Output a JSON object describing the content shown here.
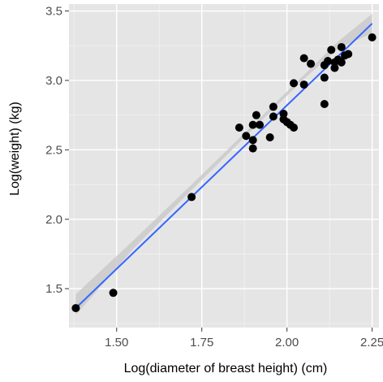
{
  "chart_data": {
    "type": "scatter",
    "title": "",
    "xlabel": "Log(diameter of breast height) (cm)",
    "ylabel": "Log(weight) (kg)",
    "xlim": [
      1.36,
      2.27
    ],
    "ylim": [
      1.22,
      3.55
    ],
    "x_ticks": [
      1.5,
      1.75,
      2.0,
      2.25
    ],
    "x_tick_labels": [
      "1.50",
      "1.75",
      "2.00",
      "2.25"
    ],
    "y_ticks": [
      1.5,
      2.0,
      2.5,
      3.0,
      3.5
    ],
    "y_tick_labels": [
      "1.5",
      "2.0",
      "2.5",
      "3.0",
      "3.5"
    ],
    "grid": true,
    "legend": "none",
    "colors": {
      "panel": "#e5e5e5",
      "grid_major": "#ffffff",
      "grid_minor": "#f2f2f2",
      "points": "#000000",
      "fit_line": "#3366ff",
      "confidence_band": "#c5c5c5"
    },
    "series": [
      {
        "values": [
          {
            "x": 1.38,
            "y": 1.36
          },
          {
            "x": 1.49,
            "y": 1.47
          },
          {
            "x": 1.72,
            "y": 2.16
          },
          {
            "x": 1.86,
            "y": 2.66
          },
          {
            "x": 1.88,
            "y": 2.6
          },
          {
            "x": 1.9,
            "y": 2.68
          },
          {
            "x": 1.9,
            "y": 2.57
          },
          {
            "x": 1.9,
            "y": 2.51
          },
          {
            "x": 1.91,
            "y": 2.75
          },
          {
            "x": 1.92,
            "y": 2.68
          },
          {
            "x": 1.95,
            "y": 2.59
          },
          {
            "x": 1.96,
            "y": 2.74
          },
          {
            "x": 1.96,
            "y": 2.81
          },
          {
            "x": 1.99,
            "y": 2.72
          },
          {
            "x": 1.99,
            "y": 2.76
          },
          {
            "x": 2.0,
            "y": 2.7
          },
          {
            "x": 2.01,
            "y": 2.68
          },
          {
            "x": 2.02,
            "y": 2.66
          },
          {
            "x": 2.02,
            "y": 2.98
          },
          {
            "x": 2.05,
            "y": 2.97
          },
          {
            "x": 2.05,
            "y": 3.16
          },
          {
            "x": 2.07,
            "y": 3.12
          },
          {
            "x": 2.11,
            "y": 2.83
          },
          {
            "x": 2.11,
            "y": 3.02
          },
          {
            "x": 2.11,
            "y": 3.11
          },
          {
            "x": 2.12,
            "y": 3.14
          },
          {
            "x": 2.13,
            "y": 3.22
          },
          {
            "x": 2.14,
            "y": 3.09
          },
          {
            "x": 2.14,
            "y": 3.13
          },
          {
            "x": 2.15,
            "y": 3.15
          },
          {
            "x": 2.16,
            "y": 3.24
          },
          {
            "x": 2.16,
            "y": 3.13
          },
          {
            "x": 2.17,
            "y": 3.18
          },
          {
            "x": 2.18,
            "y": 3.19
          },
          {
            "x": 2.25,
            "y": 3.31
          }
        ]
      }
    ],
    "fit_line": {
      "x": [
        1.38,
        2.25
      ],
      "y": [
        1.36,
        3.41
      ]
    },
    "confidence_band": {
      "x": [
        1.38,
        1.55,
        1.72,
        1.9,
        2.05,
        2.15,
        2.25
      ],
      "lower": [
        1.31,
        1.79,
        2.21,
        2.65,
        3.01,
        3.23,
        3.34
      ],
      "upper": [
        1.46,
        1.85,
        2.25,
        2.68,
        3.04,
        3.28,
        3.48
      ]
    }
  }
}
